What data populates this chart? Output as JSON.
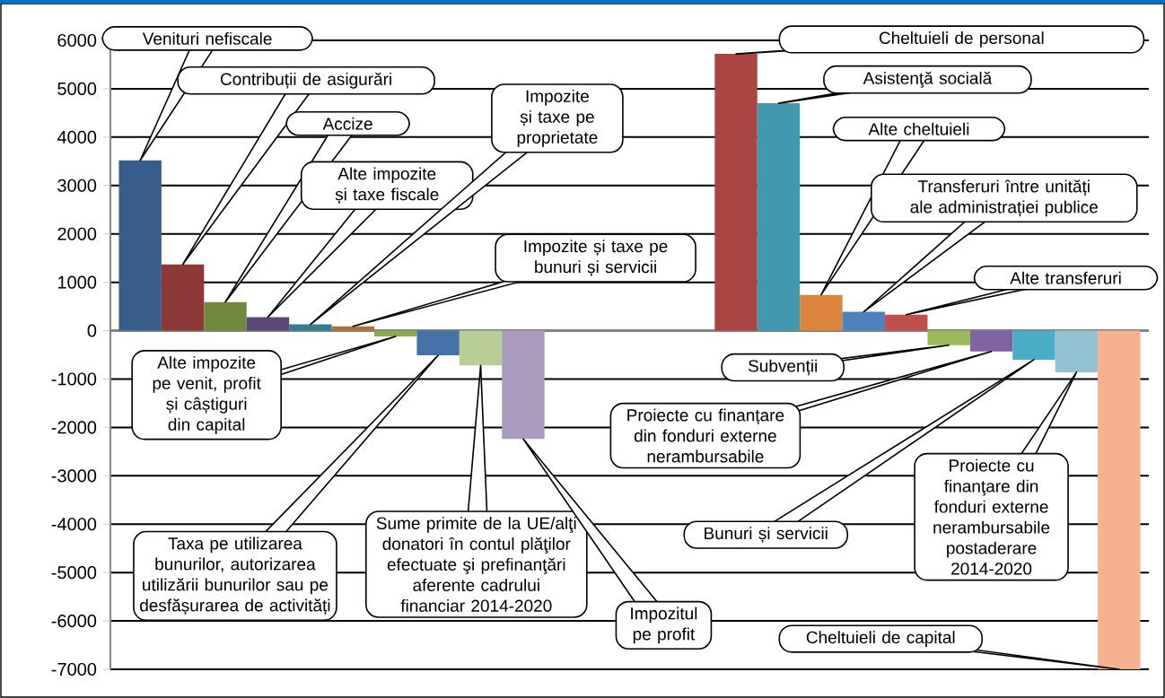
{
  "chart_data": {
    "type": "bar",
    "categories": [
      null,
      null,
      null,
      null,
      null,
      null,
      null,
      null,
      null,
      null,
      null,
      null,
      null,
      null,
      null,
      null,
      null,
      null,
      null,
      null,
      null,
      null,
      null,
      null
    ],
    "values": [
      3520,
      1370,
      590,
      280,
      130,
      90,
      -120,
      -510,
      -720,
      -2240,
      null,
      null,
      null,
      null,
      5720,
      4700,
      740,
      390,
      330,
      -300,
      -430,
      -600,
      -860,
      -7000
    ],
    "colors": [
      "#385d8a",
      "#8c3836",
      "#71893f",
      "#5c4776",
      "#357d91",
      "#b66d31",
      "#8ca94f",
      "#4672a8",
      "#b9cd96",
      "#a99bbd",
      null,
      null,
      null,
      null,
      "#a94644",
      "#4198af",
      "#db843d",
      "#4f81bd",
      "#c0504d",
      "#9bbb59",
      "#8064a2",
      "#4bacc6",
      "#93c3d3",
      "#f6b28f"
    ],
    "annotations": [
      "Venituri nefiscale",
      "Contribuții de asigurări",
      "Accize",
      "Alte impozite și taxe fiscale",
      "Impozite și taxe pe proprietate",
      "Impozite și taxe pe bunuri și servicii",
      "Alte impozite pe venit, profit și câștiguri din capital",
      "Taxa pe utilizarea bunurilor, autorizarea utilizării bunurilor sau pe desfășurarea de activități",
      "Sume primite de la UE/alţi donatori în contul plăţilor efectuate şi prefinanţări aferente cadrului financiar 2014-2020",
      "Impozitul pe profit",
      "Cheltuieli de personal",
      "Asistenţă socială",
      "Alte cheltuieli",
      "Transferuri între unități ale administrației publice",
      "Alte transferuri",
      "Subvenții",
      "Proiecte cu finanțare din fonduri externe nerambursabile",
      "Bunuri și servicii",
      "Proiecte cu finanţare din fonduri externe nerambursabile postaderare 2014-2020",
      "Cheltuieli de capital"
    ],
    "ylim": [
      -7000,
      6000
    ],
    "yticks": [
      -7000,
      -6000,
      -5000,
      -4000,
      -3000,
      -2000,
      -1000,
      0,
      1000,
      2000,
      3000,
      4000,
      5000,
      6000
    ],
    "grid": "y"
  }
}
